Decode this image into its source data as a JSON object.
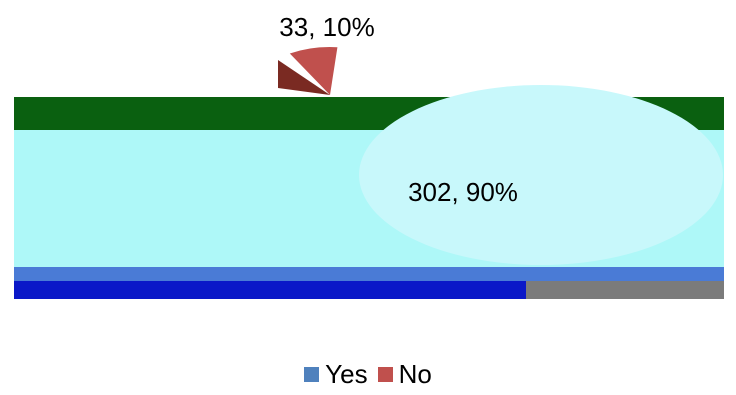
{
  "chart_data": {
    "type": "pie",
    "categories": [
      "Yes",
      "No"
    ],
    "series": [
      {
        "values": [
          302,
          33
        ]
      }
    ],
    "data_labels": [
      "302, 90%",
      "33, 10%"
    ],
    "colors": {
      "Yes": "#aef8f8",
      "No": "#c0504d"
    },
    "legend_position": "bottom",
    "legend": [
      {
        "label": "Yes",
        "color": "#4f81bd"
      },
      {
        "label": "No",
        "color": "#c0504d"
      }
    ]
  }
}
